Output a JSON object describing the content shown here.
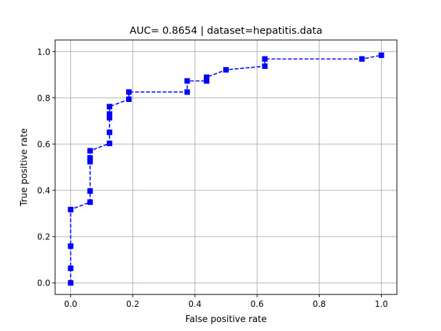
{
  "chart_data": {
    "type": "line",
    "title": "AUC= 0.8654 | dataset=hepatitis.data",
    "xlabel": "False positive rate",
    "ylabel": "True positive rate",
    "xlim": [
      -0.05,
      1.05
    ],
    "ylim": [
      -0.05,
      1.05
    ],
    "xticks": [
      "0.0",
      "0.2",
      "0.4",
      "0.6",
      "0.8",
      "1.0"
    ],
    "yticks": [
      "0.0",
      "0.2",
      "0.4",
      "0.6",
      "0.8",
      "1.0"
    ],
    "grid": true,
    "line_style": "dashed",
    "marker": "square",
    "color": "#0000ff",
    "series": [
      {
        "points": [
          [
            0.0,
            0.0
          ],
          [
            0.0,
            0.063
          ],
          [
            0.0,
            0.159
          ],
          [
            0.0,
            0.317
          ],
          [
            0.0625,
            0.349
          ],
          [
            0.0625,
            0.397
          ],
          [
            0.0625,
            0.524
          ],
          [
            0.0625,
            0.54
          ],
          [
            0.0625,
            0.571
          ],
          [
            0.125,
            0.603
          ],
          [
            0.125,
            0.651
          ],
          [
            0.125,
            0.714
          ],
          [
            0.125,
            0.73
          ],
          [
            0.125,
            0.762
          ],
          [
            0.1875,
            0.794
          ],
          [
            0.1875,
            0.825
          ],
          [
            0.375,
            0.825
          ],
          [
            0.375,
            0.873
          ],
          [
            0.4375,
            0.873
          ],
          [
            0.4375,
            0.889
          ],
          [
            0.5,
            0.921
          ],
          [
            0.625,
            0.937
          ],
          [
            0.625,
            0.968
          ],
          [
            0.9375,
            0.968
          ],
          [
            1.0,
            0.984
          ]
        ]
      }
    ]
  }
}
